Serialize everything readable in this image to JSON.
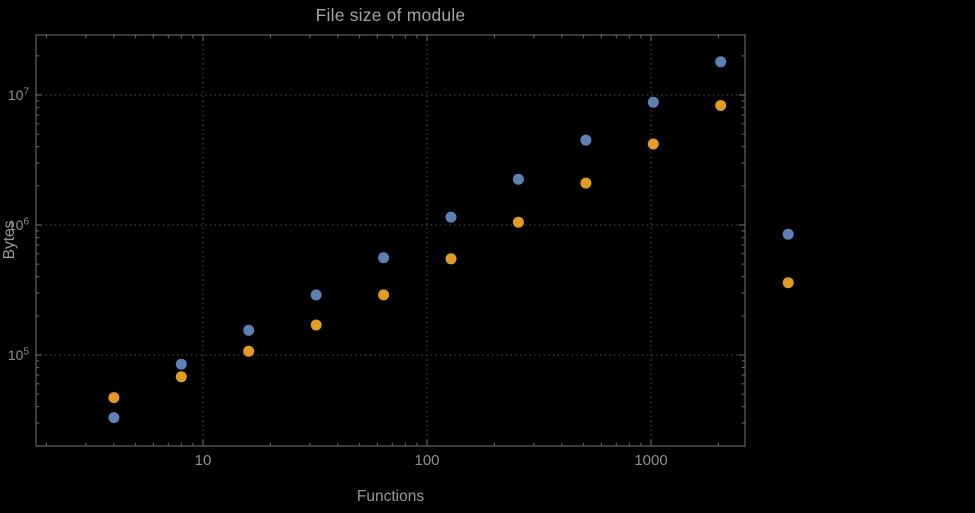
{
  "page": {
    "background": "#000000"
  },
  "chart_data": {
    "type": "scatter",
    "title": "File size of module",
    "xlabel": "Functions",
    "ylabel": "Bytes",
    "x_scale": "log",
    "y_scale": "log",
    "grid": "dotted-major",
    "legend": "none",
    "x_range": [
      1.5,
      2600
    ],
    "y_range": [
      20000,
      30000000
    ],
    "x": [
      4,
      8,
      16,
      32,
      64,
      128,
      256,
      512,
      1024,
      2048,
      4096
    ],
    "series": [
      {
        "name": "series-1",
        "color": "#5e81b5",
        "values": [
          33000,
          85000,
          155000,
          290000,
          560000,
          1150000,
          2250000,
          4500000,
          8800000,
          18000000,
          850000
        ]
      },
      {
        "name": "series-2",
        "color": "#e19c24",
        "values": [
          47000,
          68000,
          107000,
          170000,
          290000,
          550000,
          1050000,
          2100000,
          4200000,
          8300000,
          360000
        ]
      }
    ],
    "x_ticks": [
      {
        "value": 10,
        "label": "10"
      },
      {
        "value": 100,
        "label": "100"
      },
      {
        "value": 1000,
        "label": "1000"
      }
    ],
    "y_ticks": [
      {
        "value": 100000,
        "base": "10",
        "exp": "5"
      },
      {
        "value": 1000000,
        "base": "10",
        "exp": "6"
      },
      {
        "value": 10000000,
        "base": "10",
        "exp": "7"
      }
    ],
    "style": {
      "background": "#000000",
      "frame_color": "#6b6b6b",
      "grid_color": "#5a5a5a",
      "tick_label_color": "#8f8f8f",
      "axis_label_color": "#979797",
      "title_color": "#a3a3a3"
    }
  }
}
